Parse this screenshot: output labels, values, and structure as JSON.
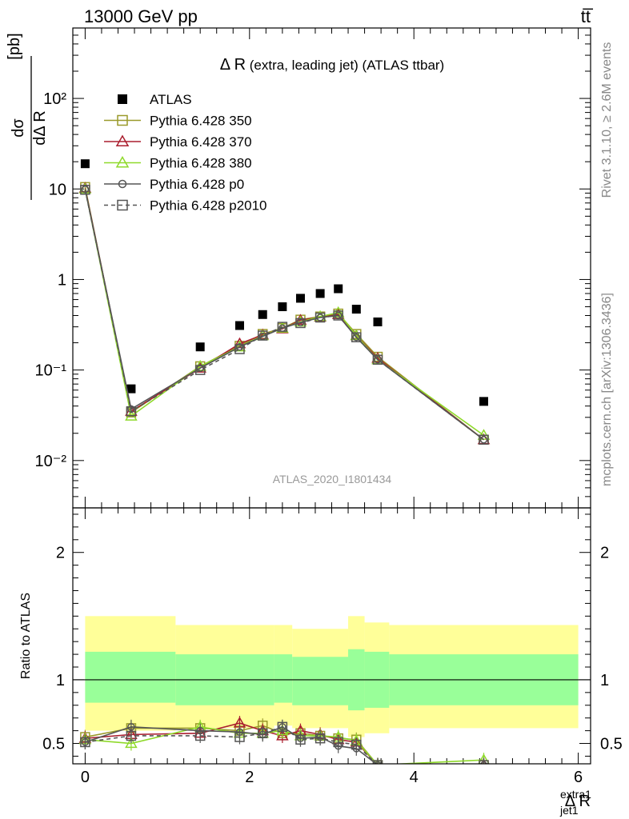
{
  "header": {
    "left": "13000 GeV pp",
    "right": "tt̅"
  },
  "side_labels": {
    "rivet": "Rivet 3.1.10, ≥ 2.6M events",
    "mcplots": "mcplots.cern.ch [arXiv:1306.3436]"
  },
  "chart_data": [
    {
      "type": "scatter",
      "title_main": "Δ R",
      "title_sub": " (extra, leading jet) (ATLAS ttbar)",
      "watermark": "ATLAS_2020_I1801434",
      "ylabel": "dσ/dΔR [pb]",
      "ylabel_unit": "[pb]",
      "y_scale": "log",
      "ylim": [
        0.003,
        600
      ],
      "xlim": [
        -0.15,
        6.15
      ],
      "y_tick_labels": [
        "10⁻²",
        "10⁻¹",
        "1",
        "10",
        "10²"
      ],
      "legend_position": "top-left",
      "x": [
        0.0,
        0.56,
        1.4,
        1.88,
        2.16,
        2.4,
        2.62,
        2.86,
        3.08,
        3.3,
        3.56,
        4.85
      ],
      "series": [
        {
          "name": "ATLAS",
          "color": "#000000",
          "marker": "filled-square",
          "values": [
            19.0,
            0.062,
            0.18,
            0.31,
            0.41,
            0.5,
            0.62,
            0.7,
            0.79,
            0.47,
            0.34,
            0.045
          ]
        },
        {
          "name": "Pythia 6.428 350",
          "color": "#9a9a2a",
          "marker": "open-square",
          "values": [
            10.5,
            0.034,
            0.11,
            0.185,
            0.25,
            0.29,
            0.36,
            0.39,
            0.42,
            0.25,
            0.14,
            0.017
          ]
        },
        {
          "name": "Pythia 6.428 370",
          "color": "#aa1e2e",
          "marker": "open-triangle",
          "values": [
            10.2,
            0.035,
            0.105,
            0.195,
            0.245,
            0.285,
            0.355,
            0.385,
            0.41,
            0.24,
            0.135,
            0.017
          ]
        },
        {
          "name": "Pythia 6.428 380",
          "color": "#8fd92b",
          "marker": "open-triangle",
          "values": [
            10.0,
            0.031,
            0.11,
            0.18,
            0.24,
            0.29,
            0.34,
            0.39,
            0.43,
            0.24,
            0.13,
            0.019
          ]
        },
        {
          "name": "Pythia 6.428 p0",
          "color": "#555555",
          "marker": "open-circle",
          "values": [
            9.9,
            0.037,
            0.105,
            0.18,
            0.235,
            0.29,
            0.335,
            0.38,
            0.4,
            0.23,
            0.13,
            0.017
          ]
        },
        {
          "name": "Pythia 6.428 p2010",
          "color": "#555555",
          "marker": "open-square",
          "dashed": true,
          "values": [
            9.8,
            0.035,
            0.1,
            0.17,
            0.24,
            0.3,
            0.33,
            0.38,
            0.4,
            0.23,
            0.13,
            0.017
          ]
        }
      ]
    },
    {
      "type": "scatter",
      "ylabel": "Ratio to ATLAS",
      "xlabel": "Δ R",
      "xlabel_sup": "extra1",
      "xlabel_sub": "jet1",
      "xlim": [
        -0.15,
        6.15
      ],
      "ylim": [
        0.34,
        2.35
      ],
      "x_ticks": [
        0,
        2,
        4,
        6
      ],
      "y_ticks": [
        0.5,
        1,
        2
      ],
      "reference_line": 1,
      "band_colors": {
        "inner": "#99ff99",
        "outer": "#ffff99"
      },
      "bands": [
        {
          "x0": 0.0,
          "x1": 1.1,
          "inner": [
            0.82,
            1.22
          ],
          "outer": [
            0.6,
            1.5
          ]
        },
        {
          "x0": 1.1,
          "x1": 2.3,
          "inner": [
            0.8,
            1.2
          ],
          "outer": [
            0.62,
            1.43
          ]
        },
        {
          "x0": 2.3,
          "x1": 2.52,
          "inner": [
            0.82,
            1.2
          ],
          "outer": [
            0.64,
            1.43
          ]
        },
        {
          "x0": 2.52,
          "x1": 3.2,
          "inner": [
            0.8,
            1.18
          ],
          "outer": [
            0.62,
            1.4
          ]
        },
        {
          "x0": 3.2,
          "x1": 3.4,
          "inner": [
            0.76,
            1.24
          ],
          "outer": [
            0.55,
            1.5
          ]
        },
        {
          "x0": 3.4,
          "x1": 3.7,
          "inner": [
            0.78,
            1.22
          ],
          "outer": [
            0.58,
            1.45
          ]
        },
        {
          "x0": 3.7,
          "x1": 6.0,
          "inner": [
            0.8,
            1.2
          ],
          "outer": [
            0.62,
            1.43
          ]
        }
      ],
      "x": [
        0.0,
        0.56,
        1.4,
        1.88,
        2.16,
        2.4,
        2.62,
        2.86,
        3.08,
        3.3,
        3.56,
        4.85
      ],
      "series": [
        {
          "name": "Pythia 6.428 350",
          "color": "#9a9a2a",
          "marker": "open-square",
          "values": [
            0.55,
            0.62,
            0.62,
            0.6,
            0.64,
            0.58,
            0.58,
            0.56,
            0.54,
            0.53,
            0.33,
            0.33
          ]
        },
        {
          "name": "Pythia 6.428 370",
          "color": "#aa1e2e",
          "marker": "open-triangle",
          "values": [
            0.54,
            0.57,
            0.58,
            0.66,
            0.6,
            0.56,
            0.6,
            0.57,
            0.53,
            0.51,
            0.33,
            0.33
          ]
        },
        {
          "name": "Pythia 6.428 380",
          "color": "#8fd92b",
          "marker": "open-triangle",
          "values": [
            0.53,
            0.5,
            0.63,
            0.58,
            0.58,
            0.6,
            0.56,
            0.56,
            0.55,
            0.52,
            0.33,
            0.37
          ]
        },
        {
          "name": "Pythia 6.428 p0",
          "color": "#555555",
          "marker": "open-circle",
          "values": [
            0.51,
            0.63,
            0.6,
            0.59,
            0.57,
            0.63,
            0.54,
            0.55,
            0.48,
            0.46,
            0.33,
            0.33
          ]
        },
        {
          "name": "Pythia 6.428 p2010",
          "color": "#555555",
          "marker": "open-square",
          "dashed": true,
          "values": [
            0.51,
            0.56,
            0.56,
            0.55,
            0.58,
            0.63,
            0.53,
            0.54,
            0.51,
            0.49,
            0.33,
            0.33
          ]
        }
      ]
    }
  ]
}
